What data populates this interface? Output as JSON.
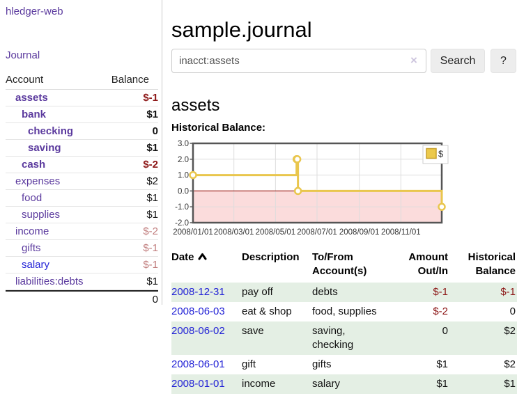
{
  "colors": {
    "link_purple": "#5b3a9e",
    "link_blue": "#2323d6",
    "negative": "#8c1616",
    "negative_muted": "#c07c7c",
    "row_green": "#e4efe4",
    "chart_line_gold": "#e9c64d",
    "chart_marker_fill": "#ffffff",
    "chart_negative_fill": "#fbdcdc",
    "chart_zero_line": "#a12b25",
    "chart_border": "#555555",
    "chart_grid": "#dddddd",
    "legend_square_fill": "#ecc94b",
    "legend_square_border": "#c7a02c"
  },
  "sidebar": {
    "app_title": "hledger-web",
    "journal_link": "Journal",
    "accounts": {
      "header_account": "Account",
      "header_balance": "Balance",
      "rows": [
        {
          "name": "assets",
          "balance": "$-1",
          "indent": 1,
          "bold": true,
          "balance_style": "negative"
        },
        {
          "name": "bank",
          "balance": "$1",
          "indent": 2,
          "bold": true,
          "balance_style": "normal"
        },
        {
          "name": "checking",
          "balance": "0",
          "indent": 3,
          "bold": true,
          "balance_style": "normal"
        },
        {
          "name": "saving",
          "balance": "$1",
          "indent": 3,
          "bold": true,
          "balance_style": "normal"
        },
        {
          "name": "cash",
          "balance": "$-2",
          "indent": 2,
          "bold": true,
          "balance_style": "negative"
        },
        {
          "name": "expenses",
          "balance": "$2",
          "indent": 1,
          "bold": false,
          "balance_style": "normal"
        },
        {
          "name": "food",
          "balance": "$1",
          "indent": 2,
          "bold": false,
          "balance_style": "normal"
        },
        {
          "name": "supplies",
          "balance": "$1",
          "indent": 2,
          "bold": false,
          "balance_style": "normal"
        },
        {
          "name": "income",
          "balance": "$-2",
          "indent": 1,
          "bold": false,
          "balance_style": "negative-muted"
        },
        {
          "name": "gifts",
          "balance": "$-1",
          "indent": 2,
          "bold": false,
          "balance_style": "negative-muted"
        },
        {
          "name": "salary",
          "balance": "$-1",
          "indent": 2,
          "bold": false,
          "balance_style": "negative-muted",
          "link_style": "blue"
        },
        {
          "name": "liabilities:debts",
          "balance": "$1",
          "indent": 1,
          "bold": false,
          "balance_style": "normal"
        }
      ],
      "total": "0"
    }
  },
  "main": {
    "title": "sample.journal",
    "search": {
      "value": "inacct:assets",
      "clear_glyph": "×",
      "button_label": "Search",
      "help_label": "?"
    },
    "account_heading": "assets",
    "section_label": "Historical Balance:"
  },
  "chart_data": {
    "type": "line",
    "step": true,
    "title": "Historical Balance",
    "series": [
      {
        "name": "$",
        "points": [
          [
            "2008-01-01",
            1
          ],
          [
            "2008-06-01",
            2
          ],
          [
            "2008-06-02",
            2
          ],
          [
            "2008-06-03",
            0
          ],
          [
            "2008-12-31",
            -1
          ]
        ]
      }
    ],
    "x_range_days": [
      "2008-01-01",
      "2008-12-31"
    ],
    "x_ticks": [
      "2008/01/01",
      "2008/03/01",
      "2008/05/01",
      "2008/07/01",
      "2008/09/01",
      "2008/11/01"
    ],
    "y_ticks": [
      3.0,
      2.0,
      1.0,
      0.0,
      -1.0,
      -2.0
    ],
    "y_tick_labels": [
      "3.0",
      "2.0",
      "1.0",
      "0.0",
      "-1.0",
      "-2.0"
    ],
    "ylim": [
      -2,
      3
    ],
    "grid": true,
    "legend": {
      "label": "$",
      "position": "top-right"
    },
    "negative_region_shaded": true
  },
  "register": {
    "headers": {
      "date": "Date",
      "description": "Description",
      "accounts": "To/From Account(s)",
      "amount": "Amount Out/In",
      "balance": "Historical Balance"
    },
    "sort": {
      "column": "date",
      "direction": "ascending"
    },
    "rows": [
      {
        "date": "2008-12-31",
        "description": "pay off",
        "accounts": "debts",
        "amount": "$-1",
        "amount_negative": true,
        "balance": "$-1",
        "balance_negative": true,
        "shaded": true
      },
      {
        "date": "2008-06-03",
        "description": "eat & shop",
        "accounts": "food, supplies",
        "amount": "$-2",
        "amount_negative": true,
        "balance": "0",
        "balance_negative": false,
        "shaded": false
      },
      {
        "date": "2008-06-02",
        "description": "save",
        "accounts": "saving, checking",
        "amount": "0",
        "amount_negative": false,
        "balance": "$2",
        "balance_negative": false,
        "shaded": true
      },
      {
        "date": "2008-06-01",
        "description": "gift",
        "accounts": "gifts",
        "amount": "$1",
        "amount_negative": false,
        "balance": "$2",
        "balance_negative": false,
        "shaded": false
      },
      {
        "date": "2008-01-01",
        "description": "income",
        "accounts": "salary",
        "amount": "$1",
        "amount_negative": false,
        "balance": "$1",
        "balance_negative": false,
        "shaded": true
      }
    ]
  }
}
